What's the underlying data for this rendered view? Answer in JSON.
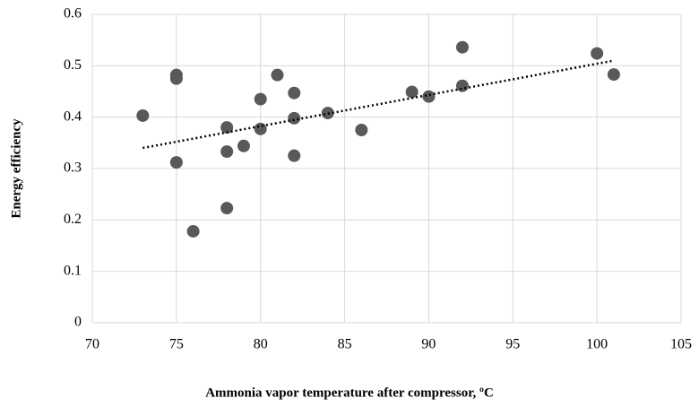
{
  "chart_data": {
    "type": "scatter",
    "xlabel": "Ammonia vapor temperature after compressor, ºC",
    "ylabel": "Energy efficiency",
    "series": [
      {
        "color": "#595959",
        "x": [
          73,
          75,
          75,
          75,
          76,
          78,
          78,
          78,
          79,
          80,
          80,
          81,
          82,
          82,
          82,
          84,
          86,
          89,
          90,
          92,
          92,
          100,
          101
        ],
        "values": [
          0.403,
          0.482,
          0.475,
          0.312,
          0.178,
          0.38,
          0.333,
          0.223,
          0.344,
          0.435,
          0.377,
          0.482,
          0.447,
          0.398,
          0.325,
          0.408,
          0.375,
          0.449,
          0.44,
          0.536,
          0.461,
          0.524,
          0.483
        ]
      }
    ],
    "trendline": {
      "x": [
        73,
        101
      ],
      "values": [
        0.34,
        0.51
      ],
      "color": "#000000"
    },
    "xlim": [
      70,
      105
    ],
    "xticks": [
      70,
      75,
      80,
      85,
      90,
      95,
      100,
      105
    ],
    "ylim": [
      0,
      0.6
    ],
    "yticks": [
      0,
      0.1,
      0.2,
      0.3,
      0.4,
      0.5,
      0.6
    ],
    "grid": true
  }
}
